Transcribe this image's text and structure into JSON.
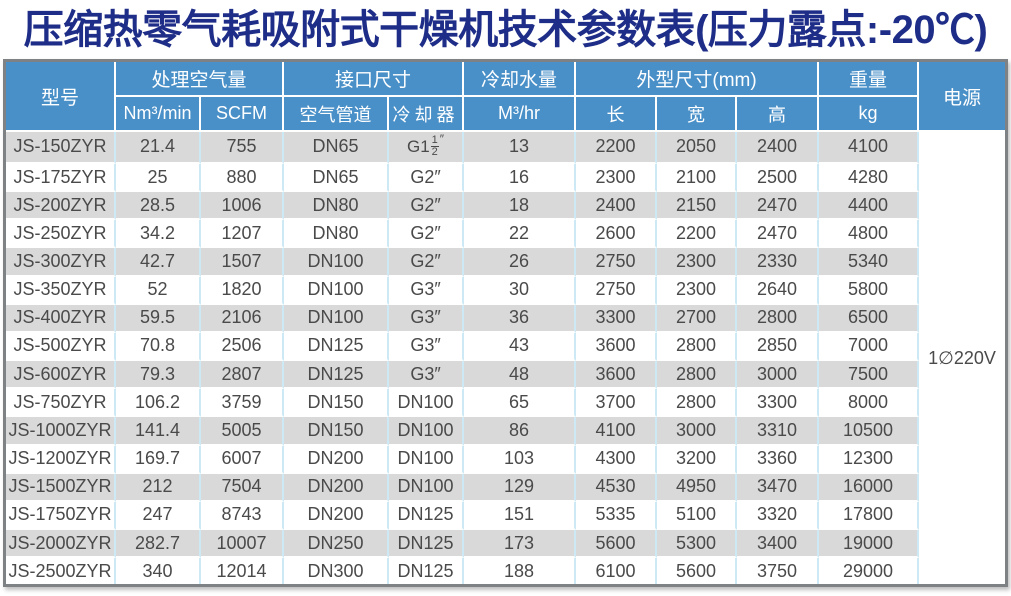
{
  "title": "压缩热零气耗吸附式干燥机技术参数表(压力露点:-20℃)",
  "colors": {
    "title_text": "#1e2d87",
    "header_bg": "#4a90c8",
    "header_text": "#ffffff",
    "alt_row_bg": "#d9d9d9",
    "grid_line_blue": "#cde9f6",
    "body_text": "#4a4a4a",
    "outer_border": "#7f8285"
  },
  "table": {
    "header": {
      "model": "型号",
      "air_group": "处理空气量",
      "air_units": [
        "Nm³/min",
        "SCFM"
      ],
      "port_group": "接口尺寸",
      "port_cols": [
        "空气管道",
        "冷却器"
      ],
      "water_group": "冷却水量",
      "water_unit": "M³/hr",
      "dims_group": "外型尺寸(mm)",
      "dims_cols": [
        "长",
        "宽",
        "高"
      ],
      "weight_group": "重量",
      "weight_unit": "kg",
      "power": "电源"
    },
    "power_value": "1∅220V",
    "rows": [
      [
        "JS-150ZYR",
        "21.4",
        "755",
        "DN65",
        {
          "pre": "G1",
          "num": "1",
          "den": "2",
          "suf": "″"
        },
        "13",
        "2200",
        "2050",
        "2400",
        "4100"
      ],
      [
        "JS-175ZYR",
        "25",
        "880",
        "DN65",
        "G2″",
        "16",
        "2300",
        "2100",
        "2500",
        "4280"
      ],
      [
        "JS-200ZYR",
        "28.5",
        "1006",
        "DN80",
        "G2″",
        "18",
        "2400",
        "2150",
        "2470",
        "4400"
      ],
      [
        "JS-250ZYR",
        "34.2",
        "1207",
        "DN80",
        "G2″",
        "22",
        "2600",
        "2200",
        "2470",
        "4800"
      ],
      [
        "JS-300ZYR",
        "42.7",
        "1507",
        "DN100",
        "G2″",
        "26",
        "2750",
        "2300",
        "2330",
        "5340"
      ],
      [
        "JS-350ZYR",
        "52",
        "1820",
        "DN100",
        "G3″",
        "30",
        "2750",
        "2300",
        "2640",
        "5800"
      ],
      [
        "JS-400ZYR",
        "59.5",
        "2106",
        "DN100",
        "G3″",
        "36",
        "3300",
        "2700",
        "2800",
        "6500"
      ],
      [
        "JS-500ZYR",
        "70.8",
        "2506",
        "DN125",
        "G3″",
        "43",
        "3600",
        "2800",
        "2850",
        "7000"
      ],
      [
        "JS-600ZYR",
        "79.3",
        "2807",
        "DN125",
        "G3″",
        "48",
        "3600",
        "2800",
        "3000",
        "7500"
      ],
      [
        "JS-750ZYR",
        "106.2",
        "3759",
        "DN150",
        "DN100",
        "65",
        "3700",
        "2800",
        "3300",
        "8000"
      ],
      [
        "JS-1000ZYR",
        "141.4",
        "5005",
        "DN150",
        "DN100",
        "86",
        "4100",
        "3000",
        "3310",
        "10500"
      ],
      [
        "JS-1200ZYR",
        "169.7",
        "6007",
        "DN200",
        "DN100",
        "103",
        "4300",
        "3200",
        "3360",
        "12300"
      ],
      [
        "JS-1500ZYR",
        "212",
        "7504",
        "DN200",
        "DN100",
        "129",
        "4530",
        "4950",
        "3470",
        "16000"
      ],
      [
        "JS-1750ZYR",
        "247",
        "8743",
        "DN200",
        "DN125",
        "151",
        "5335",
        "5100",
        "3320",
        "17800"
      ],
      [
        "JS-2000ZYR",
        "282.7",
        "10007",
        "DN250",
        "DN125",
        "173",
        "5600",
        "5300",
        "3400",
        "19000"
      ],
      [
        "JS-2500ZYR",
        "340",
        "12014",
        "DN300",
        "DN125",
        "188",
        "6100",
        "5600",
        "3750",
        "29000"
      ]
    ]
  }
}
